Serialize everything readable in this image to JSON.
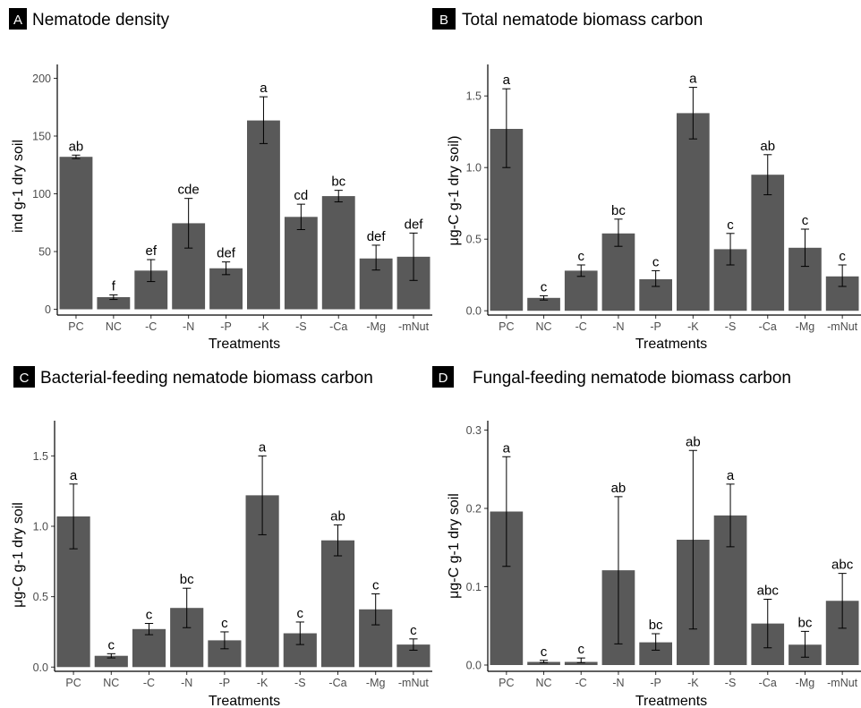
{
  "chart_data": [
    {
      "type": "bar",
      "panel": "A",
      "title": "Nematode density",
      "xlabel": "Treatments",
      "ylabel": "ind g-1 dry soil",
      "categories": [
        "PC",
        "NC",
        "-C",
        "-N",
        "-P",
        "-K",
        "-S",
        "-Ca",
        "-Mg",
        "-mNut"
      ],
      "values": [
        132,
        10.5,
        33.5,
        74.5,
        35.5,
        163.5,
        80,
        98,
        44,
        45.5
      ],
      "error_low": [
        130.5,
        8.5,
        24,
        53,
        30,
        143.5,
        69,
        93,
        34,
        25
      ],
      "error_high": [
        133.5,
        12.5,
        43,
        96,
        41,
        184,
        91,
        103,
        55.5,
        66
      ],
      "letters": [
        "ab",
        "f",
        "ef",
        "cde",
        "def",
        "a",
        "cd",
        "bc",
        "def",
        "def"
      ],
      "ylim": [
        -5,
        212
      ],
      "yticks": [
        0,
        50,
        100,
        150,
        200
      ],
      "ytick_labels": [
        "0",
        "50",
        "100",
        "150",
        "200"
      ],
      "grid": false,
      "legend": "none"
    },
    {
      "type": "bar",
      "panel": "B",
      "title": "Total nematode biomass carbon",
      "xlabel": "Treatments",
      "ylabel": "μg-C g-1 dry soil)",
      "categories": [
        "PC",
        "NC",
        "-C",
        "-N",
        "-P",
        "-K",
        "-S",
        "-Ca",
        "-Mg",
        "-mNut"
      ],
      "values": [
        1.27,
        0.09,
        0.28,
        0.54,
        0.22,
        1.38,
        0.43,
        0.95,
        0.44,
        0.24
      ],
      "error_low": [
        1.0,
        0.075,
        0.24,
        0.45,
        0.17,
        1.2,
        0.32,
        0.81,
        0.31,
        0.17
      ],
      "error_high": [
        1.55,
        0.105,
        0.32,
        0.64,
        0.28,
        1.56,
        0.54,
        1.09,
        0.57,
        0.32
      ],
      "letters": [
        "a",
        "c",
        "c",
        "bc",
        "c",
        "a",
        "c",
        "ab",
        "c",
        "c"
      ],
      "ylim": [
        -0.03,
        1.72
      ],
      "yticks": [
        0,
        0.5,
        1.0,
        1.5
      ],
      "ytick_labels": [
        "0.0",
        "0.5",
        "1.0",
        "1.5"
      ],
      "grid": false,
      "legend": "none"
    },
    {
      "type": "bar",
      "panel": "C",
      "title": "Bacterial-feeding nematode biomass carbon",
      "xlabel": "Treatments",
      "ylabel": "μg-C g-1 dry soil",
      "categories": [
        "PC",
        "NC",
        "-C",
        "-N",
        "-P",
        "-K",
        "-S",
        "-Ca",
        "-Mg",
        "-mNut"
      ],
      "values": [
        1.07,
        0.08,
        0.27,
        0.42,
        0.19,
        1.22,
        0.24,
        0.9,
        0.41,
        0.16
      ],
      "error_low": [
        0.84,
        0.065,
        0.23,
        0.28,
        0.13,
        0.94,
        0.16,
        0.79,
        0.3,
        0.12
      ],
      "error_high": [
        1.3,
        0.095,
        0.31,
        0.56,
        0.25,
        1.5,
        0.32,
        1.01,
        0.52,
        0.2
      ],
      "letters": [
        "a",
        "c",
        "c",
        "bc",
        "c",
        "a",
        "c",
        "ab",
        "c",
        "c"
      ],
      "ylim": [
        -0.03,
        1.75
      ],
      "yticks": [
        0,
        0.5,
        1.0,
        1.5
      ],
      "ytick_labels": [
        "0.0",
        "0.5",
        "1.0",
        "1.5"
      ],
      "grid": false,
      "legend": "none"
    },
    {
      "type": "bar",
      "panel": "D",
      "title": "Fungal-feeding nematode biomass carbon",
      "xlabel": "Treatments",
      "ylabel": "μg-C g-1 dry soil",
      "categories": [
        "PC",
        "NC",
        "-C",
        "-N",
        "-P",
        "-K",
        "-S",
        "-Ca",
        "-Mg",
        "-mNut"
      ],
      "values": [
        0.196,
        0.004,
        0.004,
        0.121,
        0.029,
        0.16,
        0.191,
        0.053,
        0.026,
        0.082
      ],
      "error_low": [
        0.126,
        0.003,
        0.003,
        0.027,
        0.019,
        0.046,
        0.151,
        0.022,
        0.01,
        0.047
      ],
      "error_high": [
        0.266,
        0.006,
        0.009,
        0.215,
        0.04,
        0.274,
        0.231,
        0.084,
        0.043,
        0.117
      ],
      "letters": [
        "a",
        "c",
        "c",
        "ab",
        "bc",
        "ab",
        "a",
        "abc",
        "bc",
        "abc"
      ],
      "ylim": [
        -0.008,
        0.312
      ],
      "yticks": [
        0,
        0.1,
        0.2,
        0.3
      ],
      "ytick_labels": [
        "0.0",
        "0.1",
        "0.2",
        "0.3"
      ],
      "grid": false,
      "legend": "none"
    }
  ],
  "colors": {
    "bar": "#595959",
    "error_bar": "#000000",
    "tick_label": "#4d4d4d",
    "letter_box": "#000000",
    "background": "#ffffff"
  }
}
